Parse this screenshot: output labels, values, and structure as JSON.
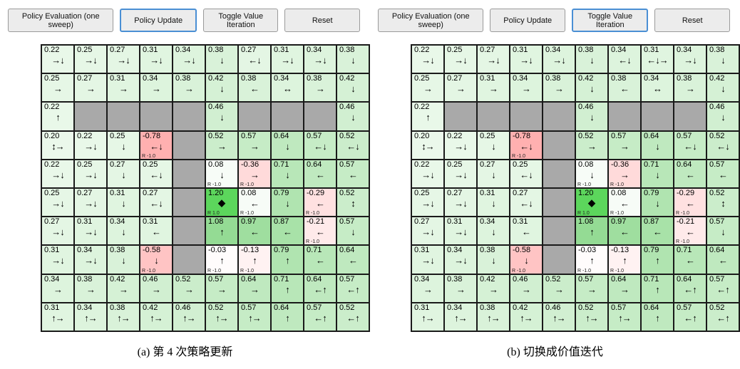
{
  "theme": {
    "accent_border": "#4a8fd4",
    "button_bg": "#ececec",
    "button_border": "#9a9a9a",
    "wall_color": "#a9a9a9",
    "positive_color": "#22b422",
    "negative_color": "#ff4646",
    "terminal_bg": "#5cd65c",
    "grid_line": "#1a1a1a"
  },
  "panels": [
    {
      "buttons": [
        "Policy Evaluation (one sweep)",
        "Policy Update",
        "Toggle Value Iteration",
        "Reset"
      ],
      "active_button": 1,
      "caption": "(a) 第 4 次策略更新",
      "grid": {
        "rows": [
          [
            {
              "v": "0.22",
              "a": "→↓"
            },
            {
              "v": "0.25",
              "a": "→↓"
            },
            {
              "v": "0.27",
              "a": "→↓"
            },
            {
              "v": "0.31",
              "a": "→↓"
            },
            {
              "v": "0.34",
              "a": "→↓"
            },
            {
              "v": "0.38",
              "a": "↓"
            },
            {
              "v": "0.27",
              "a": "←↓"
            },
            {
              "v": "0.31",
              "a": "→↓"
            },
            {
              "v": "0.34",
              "a": "→↓"
            },
            {
              "v": "0.38",
              "a": "↓"
            }
          ],
          [
            {
              "v": "0.25",
              "a": "→"
            },
            {
              "v": "0.27",
              "a": "→"
            },
            {
              "v": "0.31",
              "a": "→"
            },
            {
              "v": "0.34",
              "a": "→"
            },
            {
              "v": "0.38",
              "a": "→"
            },
            {
              "v": "0.42",
              "a": "↓"
            },
            {
              "v": "0.38",
              "a": "←"
            },
            {
              "v": "0.34",
              "a": "↔"
            },
            {
              "v": "0.38",
              "a": "→"
            },
            {
              "v": "0.42",
              "a": "↓"
            }
          ],
          [
            {
              "v": "0.22",
              "a": "↑"
            },
            {
              "w": 1
            },
            {
              "w": 1
            },
            {
              "w": 1
            },
            {
              "w": 1
            },
            {
              "v": "0.46",
              "a": "↓"
            },
            {
              "w": 1
            },
            {
              "w": 1
            },
            {
              "w": 1
            },
            {
              "v": "0.46",
              "a": "↓"
            }
          ],
          [
            {
              "v": "0.20",
              "a": "↕→"
            },
            {
              "v": "0.22",
              "a": "→↓"
            },
            {
              "v": "0.25",
              "a": "↓"
            },
            {
              "v": "-0.78",
              "a": "←↓",
              "r": "R -1.0"
            },
            {
              "w": 1
            },
            {
              "v": "0.52",
              "a": "→"
            },
            {
              "v": "0.57",
              "a": "→"
            },
            {
              "v": "0.64",
              "a": "↓"
            },
            {
              "v": "0.57",
              "a": "←↓"
            },
            {
              "v": "0.52",
              "a": "←↓"
            }
          ],
          [
            {
              "v": "0.22",
              "a": "→↓"
            },
            {
              "v": "0.25",
              "a": "→↓"
            },
            {
              "v": "0.27",
              "a": "↓"
            },
            {
              "v": "0.25",
              "a": "←↓"
            },
            {
              "w": 1
            },
            {
              "v": "0.08",
              "a": "↓",
              "r": "R -1.0"
            },
            {
              "v": "-0.36",
              "a": "→",
              "r": "R -1.0"
            },
            {
              "v": "0.71",
              "a": "↓"
            },
            {
              "v": "0.64",
              "a": "←"
            },
            {
              "v": "0.57",
              "a": "←"
            }
          ],
          [
            {
              "v": "0.25",
              "a": "→↓"
            },
            {
              "v": "0.27",
              "a": "→↓"
            },
            {
              "v": "0.31",
              "a": "↓"
            },
            {
              "v": "0.27",
              "a": "←↓"
            },
            {
              "w": 1
            },
            {
              "v": "1.20",
              "a": "◆",
              "r": "R 1.0",
              "t": 1
            },
            {
              "v": "0.08",
              "a": "←",
              "r": "R -1.0"
            },
            {
              "v": "0.79",
              "a": "↓"
            },
            {
              "v": "-0.29",
              "a": "←",
              "r": "R -1.0"
            },
            {
              "v": "0.52",
              "a": "↕"
            }
          ],
          [
            {
              "v": "0.27",
              "a": "→↓"
            },
            {
              "v": "0.31",
              "a": "→↓"
            },
            {
              "v": "0.34",
              "a": "↓"
            },
            {
              "v": "0.31",
              "a": "←"
            },
            {
              "w": 1
            },
            {
              "v": "1.08",
              "a": "↑"
            },
            {
              "v": "0.97",
              "a": "←"
            },
            {
              "v": "0.87",
              "a": "←"
            },
            {
              "v": "-0.21",
              "a": "←",
              "r": "R -1.0"
            },
            {
              "v": "0.57",
              "a": "↓"
            }
          ],
          [
            {
              "v": "0.31",
              "a": "→↓"
            },
            {
              "v": "0.34",
              "a": "→↓"
            },
            {
              "v": "0.38",
              "a": "↓"
            },
            {
              "v": "-0.58",
              "a": "↓",
              "r": "R -1.0"
            },
            {
              "w": 1
            },
            {
              "v": "-0.03",
              "a": "↑",
              "r": "R -1.0"
            },
            {
              "v": "-0.13",
              "a": "↑",
              "r": "R -1.0"
            },
            {
              "v": "0.79",
              "a": "↑"
            },
            {
              "v": "0.71",
              "a": "←"
            },
            {
              "v": "0.64",
              "a": "←"
            }
          ],
          [
            {
              "v": "0.34",
              "a": "→"
            },
            {
              "v": "0.38",
              "a": "→"
            },
            {
              "v": "0.42",
              "a": "→"
            },
            {
              "v": "0.46",
              "a": "→"
            },
            {
              "v": "0.52",
              "a": "→"
            },
            {
              "v": "0.57",
              "a": "→"
            },
            {
              "v": "0.64",
              "a": "→"
            },
            {
              "v": "0.71",
              "a": "↑"
            },
            {
              "v": "0.64",
              "a": "←↑"
            },
            {
              "v": "0.57",
              "a": "←↑"
            }
          ],
          [
            {
              "v": "0.31",
              "a": "↑→"
            },
            {
              "v": "0.34",
              "a": "↑→"
            },
            {
              "v": "0.38",
              "a": "↑→"
            },
            {
              "v": "0.42",
              "a": "↑→"
            },
            {
              "v": "0.46",
              "a": "↑→"
            },
            {
              "v": "0.52",
              "a": "↑→"
            },
            {
              "v": "0.57",
              "a": "↑→"
            },
            {
              "v": "0.64",
              "a": "↑"
            },
            {
              "v": "0.57",
              "a": "←↑"
            },
            {
              "v": "0.52",
              "a": "←↑"
            }
          ]
        ]
      }
    },
    {
      "buttons": [
        "Policy Evaluation (one sweep)",
        "Policy Update",
        "Toggle Value Iteration",
        "Reset"
      ],
      "active_button": 2,
      "caption": "(b) 切换成价值迭代",
      "grid": {
        "rows": [
          [
            {
              "v": "0.22",
              "a": "→↓"
            },
            {
              "v": "0.25",
              "a": "→↓"
            },
            {
              "v": "0.27",
              "a": "→↓"
            },
            {
              "v": "0.31",
              "a": "→↓"
            },
            {
              "v": "0.34",
              "a": "→↓"
            },
            {
              "v": "0.38",
              "a": "↓"
            },
            {
              "v": "0.34",
              "a": "←↓"
            },
            {
              "v": "0.31",
              "a": "←↓→"
            },
            {
              "v": "0.34",
              "a": "→↓"
            },
            {
              "v": "0.38",
              "a": "↓"
            }
          ],
          [
            {
              "v": "0.25",
              "a": "→"
            },
            {
              "v": "0.27",
              "a": "→"
            },
            {
              "v": "0.31",
              "a": "→"
            },
            {
              "v": "0.34",
              "a": "→"
            },
            {
              "v": "0.38",
              "a": "→"
            },
            {
              "v": "0.42",
              "a": "↓"
            },
            {
              "v": "0.38",
              "a": "←"
            },
            {
              "v": "0.34",
              "a": "↔"
            },
            {
              "v": "0.38",
              "a": "→"
            },
            {
              "v": "0.42",
              "a": "↓"
            }
          ],
          [
            {
              "v": "0.22",
              "a": "↑"
            },
            {
              "w": 1
            },
            {
              "w": 1
            },
            {
              "w": 1
            },
            {
              "w": 1
            },
            {
              "v": "0.46",
              "a": "↓"
            },
            {
              "w": 1
            },
            {
              "w": 1
            },
            {
              "w": 1
            },
            {
              "v": "0.46",
              "a": "↓"
            }
          ],
          [
            {
              "v": "0.20",
              "a": "↕→"
            },
            {
              "v": "0.22",
              "a": "→↓"
            },
            {
              "v": "0.25",
              "a": "↓"
            },
            {
              "v": "-0.78",
              "a": "←↓",
              "r": "R -1.0"
            },
            {
              "w": 1
            },
            {
              "v": "0.52",
              "a": "→"
            },
            {
              "v": "0.57",
              "a": "→"
            },
            {
              "v": "0.64",
              "a": "↓"
            },
            {
              "v": "0.57",
              "a": "←↓"
            },
            {
              "v": "0.52",
              "a": "←↓"
            }
          ],
          [
            {
              "v": "0.22",
              "a": "→↓"
            },
            {
              "v": "0.25",
              "a": "→↓"
            },
            {
              "v": "0.27",
              "a": "↓"
            },
            {
              "v": "0.25",
              "a": "←↓"
            },
            {
              "w": 1
            },
            {
              "v": "0.08",
              "a": "↓",
              "r": "R -1.0"
            },
            {
              "v": "-0.36",
              "a": "→",
              "r": "R -1.0"
            },
            {
              "v": "0.71",
              "a": "↓"
            },
            {
              "v": "0.64",
              "a": "←"
            },
            {
              "v": "0.57",
              "a": "←"
            }
          ],
          [
            {
              "v": "0.25",
              "a": "→↓"
            },
            {
              "v": "0.27",
              "a": "→↓"
            },
            {
              "v": "0.31",
              "a": "↓"
            },
            {
              "v": "0.27",
              "a": "←↓"
            },
            {
              "w": 1
            },
            {
              "v": "1.20",
              "a": "◆",
              "r": "R 1.0",
              "t": 1
            },
            {
              "v": "0.08",
              "a": "←",
              "r": "R -1.0"
            },
            {
              "v": "0.79",
              "a": "↓"
            },
            {
              "v": "-0.29",
              "a": "←",
              "r": "R -1.0"
            },
            {
              "v": "0.52",
              "a": "↕"
            }
          ],
          [
            {
              "v": "0.27",
              "a": "→↓"
            },
            {
              "v": "0.31",
              "a": "→↓"
            },
            {
              "v": "0.34",
              "a": "↓"
            },
            {
              "v": "0.31",
              "a": "←"
            },
            {
              "w": 1
            },
            {
              "v": "1.08",
              "a": "↑"
            },
            {
              "v": "0.97",
              "a": "←"
            },
            {
              "v": "0.87",
              "a": "←"
            },
            {
              "v": "-0.21",
              "a": "←",
              "r": "R -1.0"
            },
            {
              "v": "0.57",
              "a": "↓"
            }
          ],
          [
            {
              "v": "0.31",
              "a": "→↓"
            },
            {
              "v": "0.34",
              "a": "→↓"
            },
            {
              "v": "0.38",
              "a": "↓"
            },
            {
              "v": "-0.58",
              "a": "↓",
              "r": "R -1.0"
            },
            {
              "w": 1
            },
            {
              "v": "-0.03",
              "a": "↑",
              "r": "R -1.0"
            },
            {
              "v": "-0.13",
              "a": "↑",
              "r": "R -1.0"
            },
            {
              "v": "0.79",
              "a": "↑"
            },
            {
              "v": "0.71",
              "a": "←"
            },
            {
              "v": "0.64",
              "a": "←"
            }
          ],
          [
            {
              "v": "0.34",
              "a": "→"
            },
            {
              "v": "0.38",
              "a": "→"
            },
            {
              "v": "0.42",
              "a": "→"
            },
            {
              "v": "0.46",
              "a": "→"
            },
            {
              "v": "0.52",
              "a": "→"
            },
            {
              "v": "0.57",
              "a": "→"
            },
            {
              "v": "0.64",
              "a": "→"
            },
            {
              "v": "0.71",
              "a": "↑"
            },
            {
              "v": "0.64",
              "a": "←↑"
            },
            {
              "v": "0.57",
              "a": "←↑"
            }
          ],
          [
            {
              "v": "0.31",
              "a": "↑→"
            },
            {
              "v": "0.34",
              "a": "↑→"
            },
            {
              "v": "0.38",
              "a": "↑→"
            },
            {
              "v": "0.42",
              "a": "↑→"
            },
            {
              "v": "0.46",
              "a": "↑→"
            },
            {
              "v": "0.52",
              "a": "↑→"
            },
            {
              "v": "0.57",
              "a": "↑→"
            },
            {
              "v": "0.64",
              "a": "↑"
            },
            {
              "v": "0.57",
              "a": "←↑"
            },
            {
              "v": "0.52",
              "a": "←↑"
            }
          ]
        ]
      }
    }
  ]
}
